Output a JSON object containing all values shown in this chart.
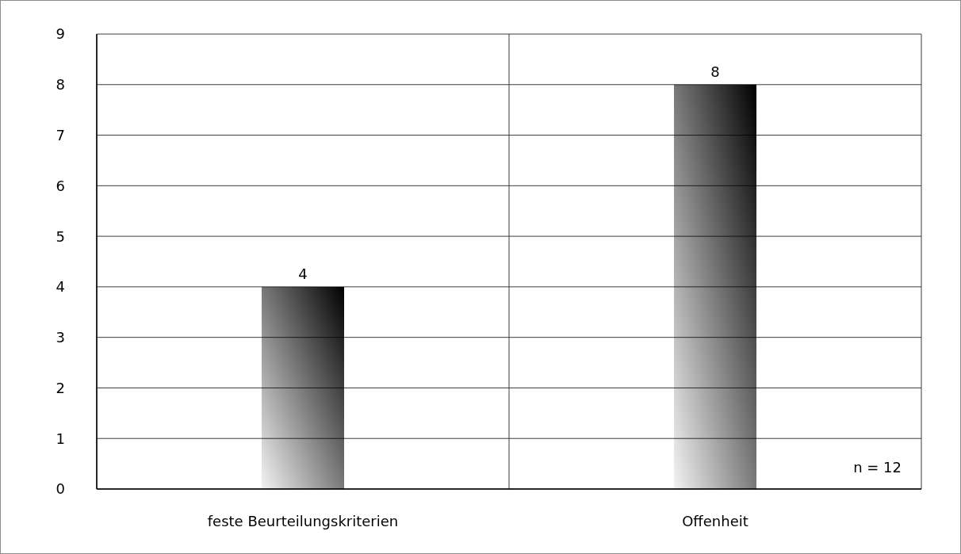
{
  "chart_data": {
    "type": "bar",
    "categories": [
      "feste Beurteilungskriterien",
      "Offenheit"
    ],
    "values": [
      4,
      8
    ],
    "color": "#000000",
    "ylim": [
      0,
      9
    ],
    "yticks": [
      0,
      1,
      2,
      3,
      4,
      5,
      6,
      7,
      8,
      9
    ],
    "grid": true,
    "data_labels": true,
    "annotations": [
      "n = 12"
    ]
  }
}
